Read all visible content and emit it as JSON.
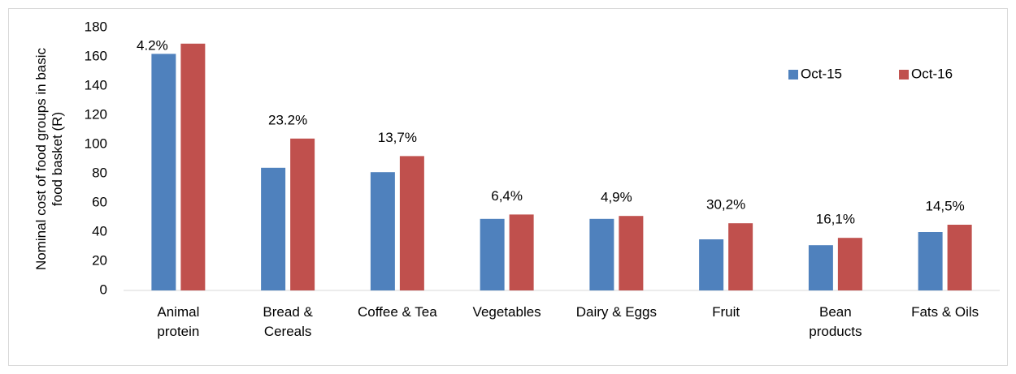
{
  "chart_data": {
    "type": "bar",
    "y_label": "Nominal cost of food groups in basic food basket (R)",
    "categories": [
      "Animal protein",
      "Bread & Cereals",
      "Coffee & Tea",
      "Vegetables",
      "Dairy & Eggs",
      "Fruit",
      "Bean products",
      "Fats & Oils"
    ],
    "series": [
      {
        "name": "Oct-15",
        "color": "#4f81bd",
        "values": [
          162,
          84,
          81,
          49,
          49,
          35,
          31,
          40
        ]
      },
      {
        "name": "Oct-16",
        "color": "#c0504d",
        "values": [
          169,
          104,
          92,
          52,
          51,
          46,
          36,
          45
        ]
      }
    ],
    "annotations": [
      "4.2%",
      "23.2%",
      "13,7%",
      "6,4%",
      "4,9%",
      "30,2%",
      "16,1%",
      "14,5%"
    ],
    "ylim": [
      0,
      180
    ],
    "yticks": [
      0,
      20,
      40,
      60,
      80,
      100,
      120,
      140,
      160,
      180
    ],
    "grid": false,
    "legend": "top-right"
  }
}
